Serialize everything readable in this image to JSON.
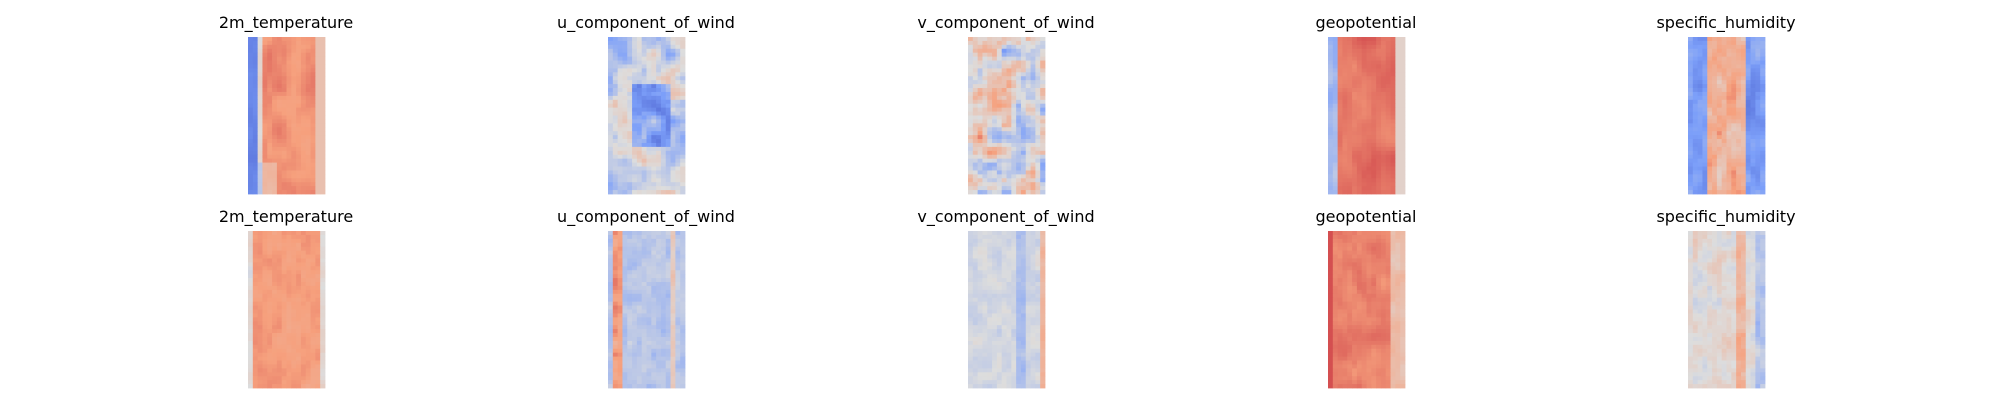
{
  "chart_data": {
    "type": "heatmap",
    "colormap": "coolwarm",
    "axes": "off",
    "rows": [
      {
        "row": "top",
        "panels": [
          {
            "title": "2m_temperature",
            "field": "t2m_top"
          },
          {
            "title": "u_component_of_wind",
            "field": "u_top"
          },
          {
            "title": "v_component_of_wind",
            "field": "v_top"
          },
          {
            "title": "geopotential",
            "field": "z_top"
          },
          {
            "title": "specific_humidity",
            "field": "q_top"
          }
        ]
      },
      {
        "row": "bottom",
        "panels": [
          {
            "title": "2m_temperature",
            "field": "t2m_bot"
          },
          {
            "title": "u_component_of_wind",
            "field": "u_bot"
          },
          {
            "title": "v_component_of_wind",
            "field": "v_bot"
          },
          {
            "title": "geopotential",
            "field": "z_bot"
          },
          {
            "title": "specific_humidity",
            "field": "q_bot"
          }
        ]
      }
    ]
  }
}
